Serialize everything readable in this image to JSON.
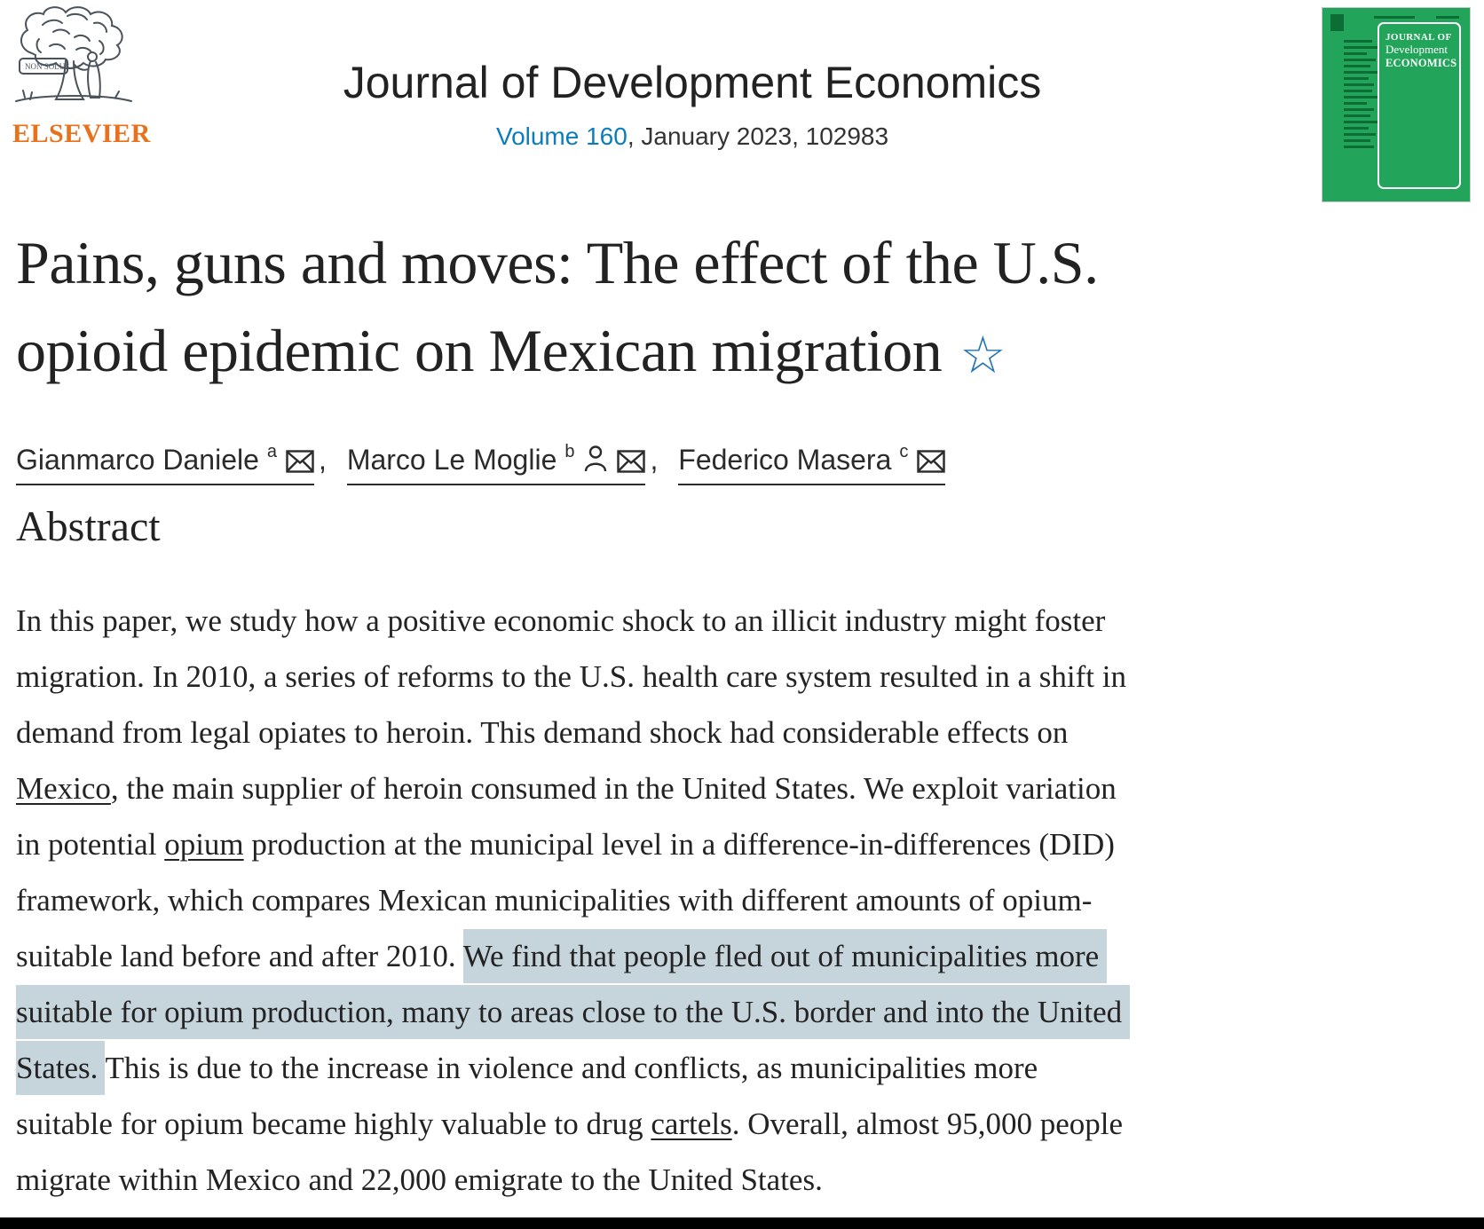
{
  "header": {
    "publisher": "ELSEVIER",
    "non_solus": "NON SOLUS",
    "journal_title": "Journal of Development Economics",
    "volume_link": "Volume 160",
    "issue_rest": ", January 2023, 102983"
  },
  "cover": {
    "line1": "JOURNAL OF",
    "line2": "Development",
    "line3": "ECONOMICS"
  },
  "article": {
    "title_lines": [
      "Pains, guns and moves: The effect of the U.S.",
      "opioid epidemic on Mexican migration"
    ],
    "footnote_star": "☆"
  },
  "authors": {
    "separator": ", ",
    "list": [
      {
        "name": "Gianmarco Daniele",
        "sup": "a",
        "icons": [
          "envelope-icon"
        ]
      },
      {
        "name": "Marco Le Moglie",
        "sup": "b",
        "icons": [
          "person-icon",
          "envelope-icon"
        ]
      },
      {
        "name": "Federico Masera",
        "sup": "c",
        "icons": [
          "envelope-icon"
        ]
      }
    ]
  },
  "abstract": {
    "heading": "Abstract",
    "lines": [
      {
        "segments": [
          {
            "t": "In this paper, we study how a positive economic shock to an illicit industry might foster"
          }
        ]
      },
      {
        "segments": [
          {
            "t": "migration. In 2010, a series of reforms to the U.S. health care system resulted in a shift in"
          }
        ]
      },
      {
        "segments": [
          {
            "t": "demand from legal opiates to heroin. This demand shock had considerable effects on"
          }
        ]
      },
      {
        "segments": [
          {
            "t": "Mexico",
            "link": true
          },
          {
            "t": ", the main supplier of heroin consumed in the United States. We exploit variation"
          }
        ]
      },
      {
        "segments": [
          {
            "t": "in potential "
          },
          {
            "t": "opium",
            "link": true
          },
          {
            "t": " production at the municipal level in a difference-in-differences (DID)"
          }
        ]
      },
      {
        "segments": [
          {
            "t": "framework, which compares Mexican municipalities with different amounts of opium-"
          }
        ]
      },
      {
        "segments": [
          {
            "t": "suitable land before and after 2010. "
          },
          {
            "t": "We find that people fled out of municipalities more ",
            "hl": true
          }
        ]
      },
      {
        "segments": [
          {
            "t": "suitable for opium production, many to areas close to the U.S. border and into the United ",
            "hl": true
          }
        ]
      },
      {
        "segments": [
          {
            "t": "States. ",
            "hl": true
          },
          {
            "t": "This is due to the increase in violence and conflicts, as municipalities more"
          }
        ]
      },
      {
        "segments": [
          {
            "t": "suitable for opium became highly valuable to drug "
          },
          {
            "t": "cartels",
            "link": true
          },
          {
            "t": ". Overall, almost 95,000 people"
          }
        ]
      },
      {
        "segments": [
          {
            "t": "migrate within Mexico and 22,000 emigrate to the United States."
          }
        ]
      }
    ]
  },
  "colors": {
    "elsevier_orange": "#e9711c",
    "link_blue": "#0b7dbe",
    "highlight": "#c6d4dc",
    "cover_green": "#22a45b",
    "star_blue": "#2173b4",
    "text": "#232323"
  }
}
